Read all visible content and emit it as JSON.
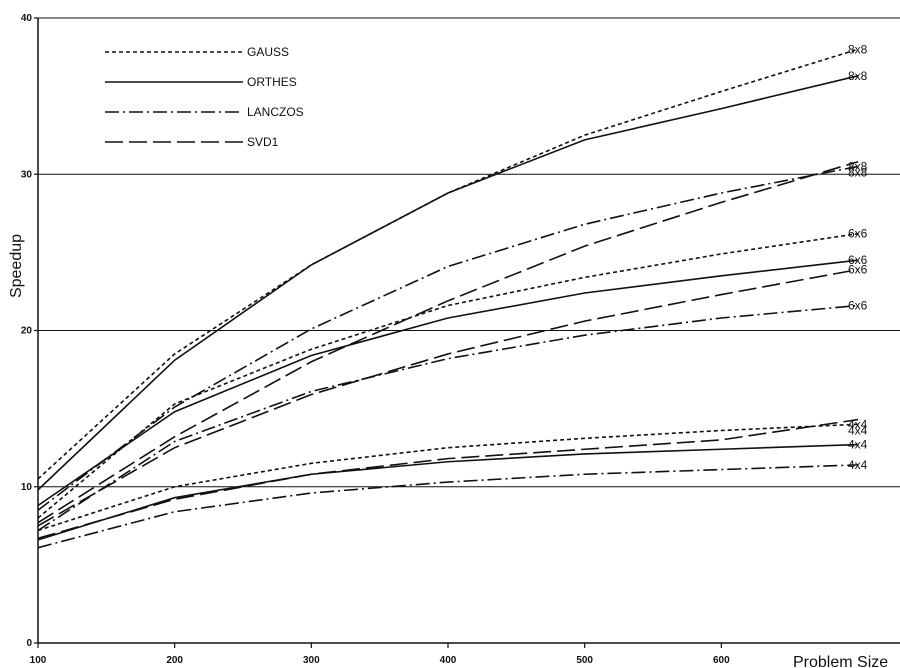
{
  "chart_data": {
    "type": "line",
    "xlabel": "Problem Size",
    "ylabel": "Speedup",
    "xlim": [
      100,
      700
    ],
    "ylim": [
      0,
      40
    ],
    "x_ticks": [
      "100",
      "200",
      "300",
      "400",
      "500",
      "600"
    ],
    "y_ticks": [
      "0",
      "10",
      "20",
      "30",
      "40"
    ],
    "grid": "horizontal at 10, 20, 30",
    "legend": [
      "GAUSS",
      "ORTHES",
      "LANCZOS",
      "SVD1"
    ],
    "legend_position": "top-left",
    "x": [
      100,
      200,
      300,
      400,
      500,
      600,
      700
    ],
    "series": [
      {
        "name": "GAUSS",
        "label": "8x8",
        "values": [
          10.5,
          18.5,
          24.2,
          28.8,
          32.5,
          35.3,
          38.0
        ]
      },
      {
        "name": "ORTHES",
        "label": "8x8",
        "values": [
          9.8,
          18.1,
          24.2,
          28.8,
          32.2,
          34.2,
          36.3
        ]
      },
      {
        "name": "LANCZOS",
        "label": "8x8",
        "values": [
          8.5,
          15.1,
          20.1,
          24.1,
          26.8,
          28.8,
          30.5
        ]
      },
      {
        "name": "SVD1",
        "label": "8x8",
        "values": [
          7.7,
          13.2,
          18.0,
          21.9,
          25.4,
          28.2,
          30.8
        ]
      },
      {
        "name": "GAUSS",
        "label": "6x6",
        "values": [
          8.0,
          15.3,
          18.8,
          21.6,
          23.4,
          24.9,
          26.2
        ]
      },
      {
        "name": "ORTHES",
        "label": "6x6",
        "values": [
          8.8,
          14.8,
          18.4,
          20.8,
          22.4,
          23.5,
          24.5
        ]
      },
      {
        "name": "SVD1",
        "label": "6x6",
        "values": [
          7.5,
          12.5,
          15.9,
          18.5,
          20.6,
          22.3,
          23.9
        ]
      },
      {
        "name": "LANCZOS",
        "label": "6x6",
        "values": [
          7.2,
          12.9,
          16.1,
          18.2,
          19.7,
          20.8,
          21.6
        ]
      },
      {
        "name": "GAUSS",
        "label": "4x4",
        "values": [
          7.2,
          10.0,
          11.5,
          12.5,
          13.1,
          13.6,
          14.0
        ]
      },
      {
        "name": "SVD1",
        "label": "4x4",
        "values": [
          6.7,
          9.2,
          10.8,
          11.8,
          12.4,
          13.0,
          14.3
        ]
      },
      {
        "name": "ORTHES",
        "label": "4x4",
        "values": [
          6.6,
          9.3,
          10.8,
          11.6,
          12.1,
          12.4,
          12.7
        ]
      },
      {
        "name": "LANCZOS",
        "label": "4x4",
        "values": [
          6.1,
          8.4,
          9.6,
          10.3,
          10.8,
          11.1,
          11.4
        ]
      }
    ]
  }
}
